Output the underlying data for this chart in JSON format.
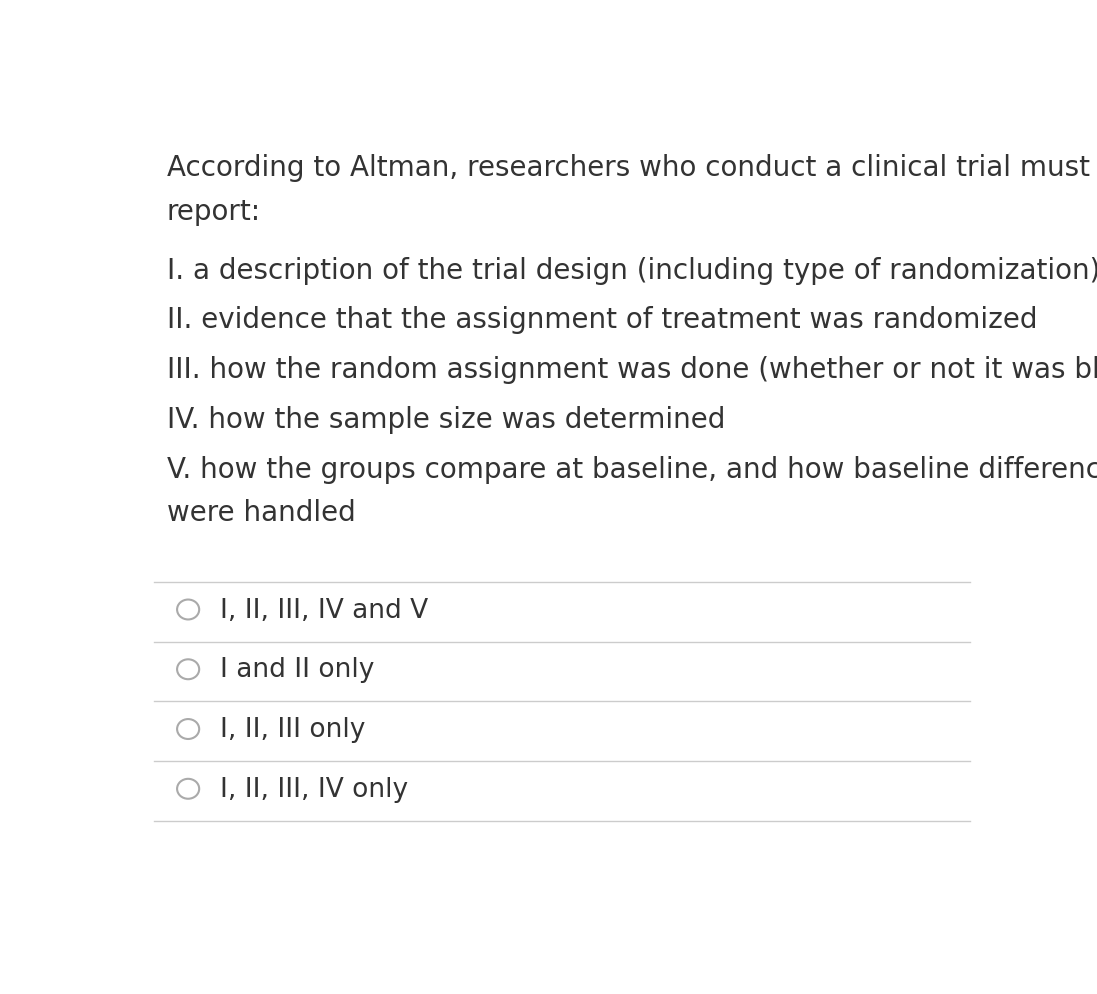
{
  "background_color": "#ffffff",
  "text_color": "#333333",
  "question_text": "According to Altman, researchers who conduct a clinical trial must\nreport:",
  "items": [
    "I. a description of the trial design (including type of randomization)",
    "II. evidence that the assignment of treatment was randomized",
    "III. how the random assignment was done (whether or not it was blinded)",
    "IV. how the sample size was determined",
    "V. how the groups compare at baseline, and how baseline differences\nwere handled"
  ],
  "options": [
    "I, II, III, IV and V",
    "I and II only",
    "I, II, III only",
    "I, II, III, IV only"
  ],
  "question_fontsize": 20,
  "item_fontsize": 20,
  "option_fontsize": 19,
  "circle_color": "#aaaaaa",
  "line_color": "#cccccc"
}
